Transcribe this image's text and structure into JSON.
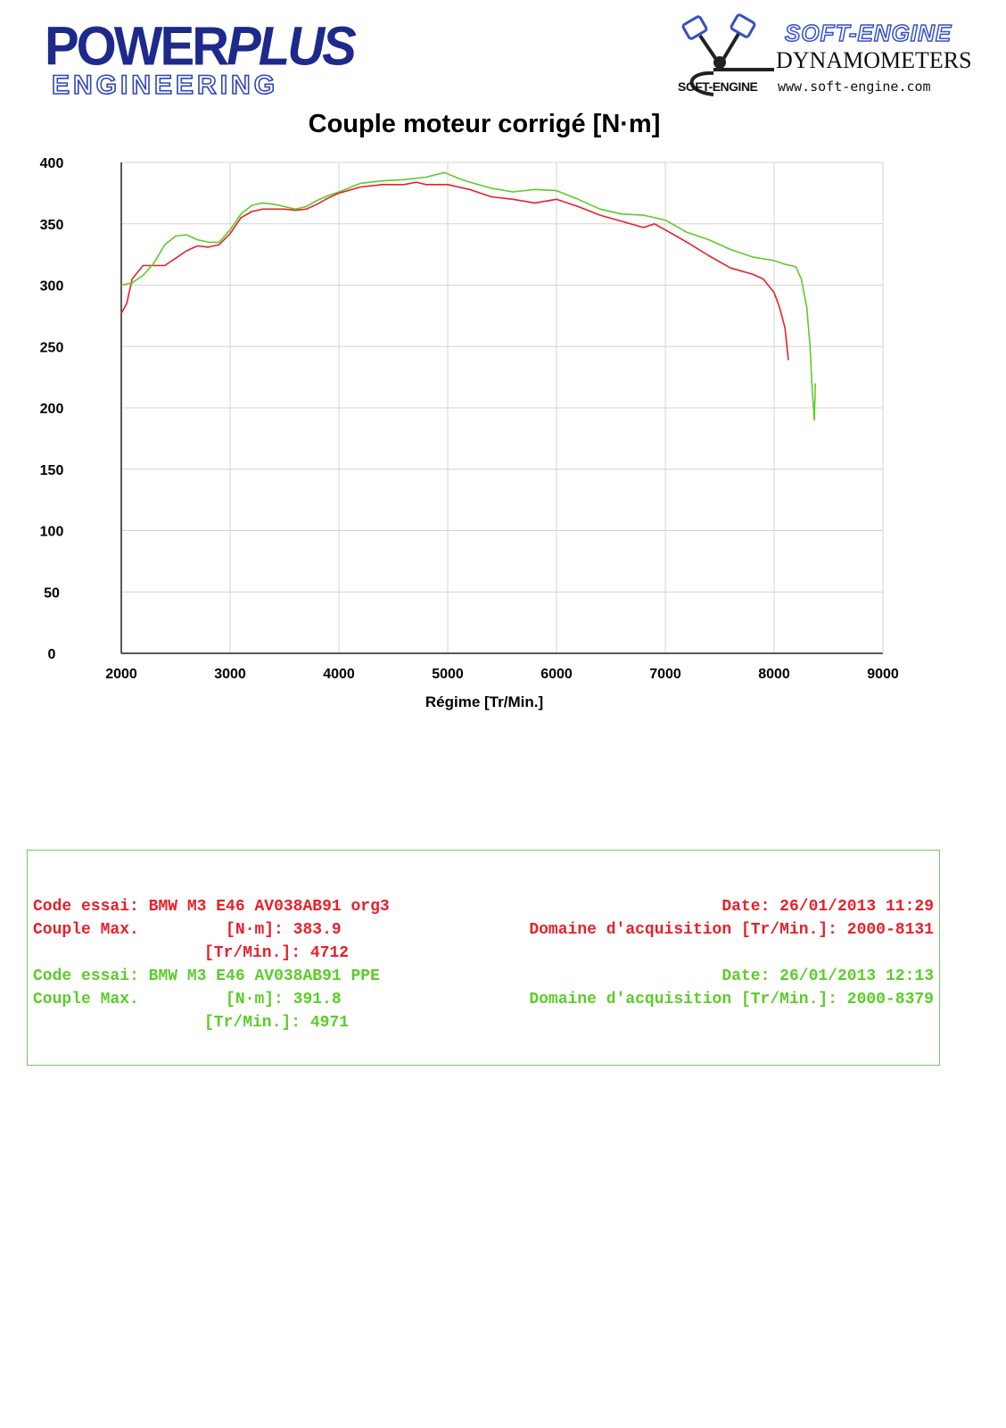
{
  "header": {
    "left_logo_line1_a": "POWER",
    "left_logo_line1_b": "PLUS",
    "left_logo_line2": "ENGINEERING",
    "right_logo_brand": "SOFT-ENGINE",
    "right_logo_tagline": "DYNAMOMETERS",
    "right_logo_mark": "SOFT-ENGINE",
    "right_logo_url": "www.soft-engine.com"
  },
  "colors": {
    "series_org3": "#e8202a",
    "series_ppe": "#5ccc2a",
    "grid": "#d4d4d4",
    "logo_blue": "#1d2a8c"
  },
  "chart_data": {
    "type": "line",
    "title": "Couple moteur corrigé [N·m]",
    "xlabel": "Régime [Tr/Min.]",
    "ylabel": "",
    "xlim": [
      2000,
      9000
    ],
    "ylim": [
      0,
      400
    ],
    "x_ticks": [
      "2000",
      "3000",
      "4000",
      "5000",
      "6000",
      "7000",
      "8000",
      "9000"
    ],
    "y_ticks": [
      "0",
      "50",
      "100",
      "150",
      "200",
      "250",
      "300",
      "350",
      "400"
    ],
    "grid": true,
    "legend": "none",
    "series": [
      {
        "color": "#e8202a",
        "x": [
          2000,
          2050,
          2100,
          2200,
          2300,
          2400,
          2500,
          2600,
          2700,
          2800,
          2900,
          3000,
          3100,
          3200,
          3300,
          3400,
          3500,
          3600,
          3700,
          3800,
          3900,
          4000,
          4200,
          4400,
          4600,
          4712,
          4800,
          5000,
          5200,
          5400,
          5600,
          5800,
          6000,
          6200,
          6400,
          6600,
          6800,
          6900,
          7000,
          7200,
          7400,
          7600,
          7800,
          7900,
          8000,
          8050,
          8100,
          8131
        ],
        "y": [
          277,
          285,
          305,
          316,
          316,
          316,
          322,
          328,
          332,
          331,
          333,
          342,
          355,
          360,
          362,
          362,
          362,
          361,
          362,
          366,
          371,
          375,
          380,
          382,
          382,
          383.9,
          382,
          382,
          378,
          372,
          370,
          367,
          370,
          364,
          357,
          352,
          347,
          350,
          345,
          335,
          324,
          314,
          309,
          305,
          294,
          282,
          265,
          239
        ]
      },
      {
        "color": "#5ccc2a",
        "x": [
          2000,
          2100,
          2200,
          2300,
          2400,
          2500,
          2600,
          2700,
          2800,
          2900,
          3000,
          3100,
          3200,
          3300,
          3400,
          3500,
          3600,
          3700,
          3800,
          3900,
          4000,
          4200,
          4400,
          4600,
          4800,
          4971,
          5100,
          5200,
          5400,
          5600,
          5800,
          6000,
          6200,
          6400,
          6600,
          6800,
          7000,
          7200,
          7400,
          7600,
          7800,
          8000,
          8100,
          8200,
          8250,
          8300,
          8330,
          8350,
          8370,
          8379
        ],
        "y": [
          300,
          302,
          308,
          318,
          333,
          340,
          341,
          337,
          335,
          335,
          345,
          358,
          365,
          367,
          366,
          364,
          362,
          364,
          369,
          373,
          376,
          383,
          385,
          386,
          388,
          391.8,
          387,
          384,
          379,
          376,
          378,
          377,
          370,
          362,
          358,
          357,
          353,
          343,
          337,
          329,
          323,
          320,
          317,
          315,
          305,
          282,
          250,
          215,
          190,
          220
        ]
      }
    ]
  },
  "info": {
    "run1": {
      "code_label": "Code essai:",
      "code_value": "BMW M3 E46 AV038AB91 org3",
      "date": "Date: 26/01/2013 11:29",
      "couple_label": "Couple Max.",
      "nm_label": "[N·m]:",
      "nm_value": "383.9",
      "domain": "Domaine d'acquisition [Tr/Min.]: 2000-8131",
      "rpm_label": "[Tr/Min.]:",
      "rpm_value": "4712"
    },
    "run2": {
      "code_label": "Code essai:",
      "code_value": "BMW M3 E46 AV038AB91 PPE",
      "date": "Date: 26/01/2013 12:13",
      "couple_label": "Couple Max.",
      "nm_label": "[N·m]:",
      "nm_value": "391.8",
      "domain": "Domaine d'acquisition [Tr/Min.]: 2000-8379",
      "rpm_label": "[Tr/Min.]:",
      "rpm_value": "4971"
    }
  }
}
